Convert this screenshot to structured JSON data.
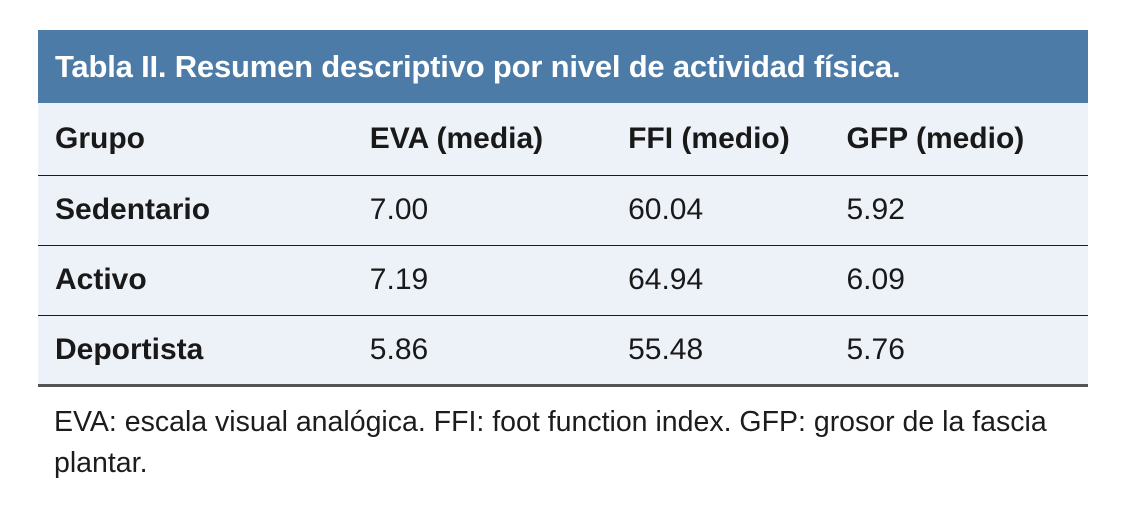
{
  "chart_data": {
    "type": "table",
    "title": "Tabla II. Resumen descriptivo por nivel de actividad física.",
    "columns": [
      "Grupo",
      "EVA (media)",
      "FFI (medio)",
      "GFP (medio)"
    ],
    "rows": [
      [
        "Sedentario",
        "7.00",
        "60.04",
        "5.92"
      ],
      [
        "Activo",
        "7.19",
        "64.94",
        "6.09"
      ],
      [
        "Deportista",
        "5.86",
        "55.48",
        "5.76"
      ]
    ],
    "footnote_lines": [
      "EVA: escala visual analógica. FFI: foot function index. GFP: grosor de la fascia",
      "plantar."
    ]
  },
  "colors": {
    "title_bar_background": "#4d7ba7",
    "title_text": "#ffffff",
    "table_background": "#edf1f8",
    "row_separator": "#1d1d1d",
    "table_bottom_border": "#555555",
    "body_text": "#191919"
  }
}
